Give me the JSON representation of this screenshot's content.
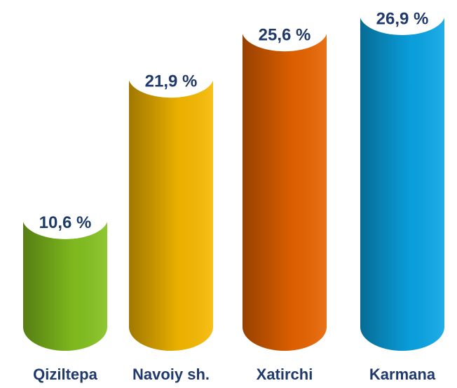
{
  "chart_data": {
    "type": "bar",
    "categories": [
      "Qiziltepa",
      "Navoiy sh.",
      "Xatirchi",
      "Karmana"
    ],
    "values": [
      10.6,
      21.9,
      25.6,
      26.9
    ],
    "value_labels": [
      "10,6 %",
      "21,9 %",
      "25,6 %",
      "26,9 %"
    ],
    "colors": [
      "#84c21f",
      "#f7b900",
      "#e86400",
      "#0aa6e6"
    ]
  }
}
